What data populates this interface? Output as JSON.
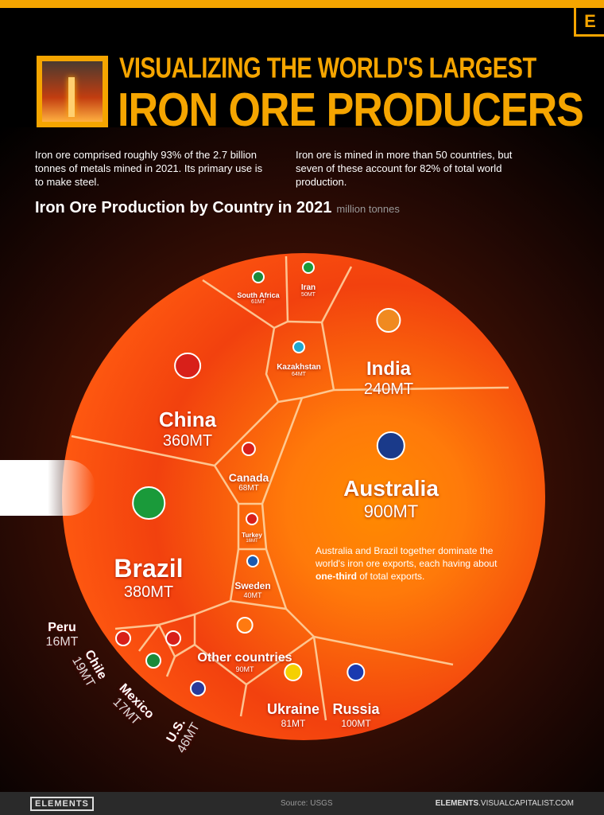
{
  "header": {
    "logo": "E",
    "title_line1": "VISUALIZING THE WORLD'S LARGEST",
    "title_line2": "IRON ORE PRODUCERS"
  },
  "intro": {
    "left": "Iron ore comprised roughly 93% of the 2.7 billion tonnes of metals mined in 2021. Its primary use is to make steel.",
    "right": "Iron ore is mined in more than 50 countries, but seven of these account for 82% of total world production."
  },
  "chart_data": {
    "type": "voronoi-treemap",
    "title": "Iron Ore Production by Country in 2021",
    "unit": "million tonnes",
    "items": [
      {
        "name": "Australia",
        "value": 900,
        "label": "900MT",
        "flag": "australia-flag"
      },
      {
        "name": "Brazil",
        "value": 380,
        "label": "380MT",
        "flag": "brazil-flag"
      },
      {
        "name": "China",
        "value": 360,
        "label": "360MT",
        "flag": "china-flag"
      },
      {
        "name": "India",
        "value": 240,
        "label": "240MT",
        "flag": "india-flag"
      },
      {
        "name": "Russia",
        "value": 100,
        "label": "100MT",
        "flag": "russia-flag"
      },
      {
        "name": "Other countries",
        "value": 90,
        "label": "90MT",
        "flag": "globe-icon"
      },
      {
        "name": "Ukraine",
        "value": 81,
        "label": "81MT",
        "flag": "ukraine-flag"
      },
      {
        "name": "Canada",
        "value": 68,
        "label": "68MT",
        "flag": "canada-flag"
      },
      {
        "name": "Kazakhstan",
        "value": 64,
        "label": "64MT",
        "flag": "kazakhstan-flag"
      },
      {
        "name": "South Africa",
        "value": 61,
        "label": "61MT",
        "flag": "south-africa-flag"
      },
      {
        "name": "Iran",
        "value": 50,
        "label": "50MT",
        "flag": "iran-flag"
      },
      {
        "name": "U.S.",
        "value": 46,
        "label": "46MT",
        "flag": "us-flag"
      },
      {
        "name": "Sweden",
        "value": 40,
        "label": "40MT",
        "flag": "sweden-flag"
      },
      {
        "name": "Chile",
        "value": 19,
        "label": "19MT",
        "flag": "chile-flag"
      },
      {
        "name": "Mexico",
        "value": 17,
        "label": "17MT",
        "flag": "mexico-flag"
      },
      {
        "name": "Turkey",
        "value": 16,
        "label": "16MT",
        "flag": "turkey-flag"
      },
      {
        "name": "Peru",
        "value": 16,
        "label": "16MT",
        "flag": "peru-flag"
      }
    ]
  },
  "note": {
    "before": "Australia and Brazil together dominate the world's iron ore exports, each having about ",
    "bold": "one-third",
    "after": " of total exports."
  },
  "footer": {
    "logo": "ELEMENTS",
    "source": "Source: USGS",
    "url_bold": "ELEMENTS",
    "url_rest": ".VISUALCAPITALIST.COM"
  }
}
